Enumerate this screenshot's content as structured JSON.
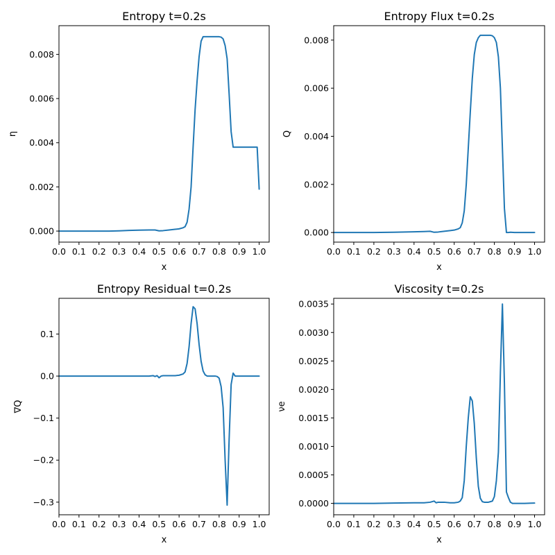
{
  "colors": {
    "line": "#1f77b4",
    "axis": "#000000",
    "background": "#ffffff"
  },
  "chart_data": [
    {
      "type": "line",
      "title": "Entropy t=0.2s",
      "xlabel": "x",
      "ylabel": "η",
      "xlim": [
        0.0,
        1.05
      ],
      "ylim": [
        -0.0005,
        0.0093
      ],
      "xticks": [
        0.0,
        0.1,
        0.2,
        0.3,
        0.4,
        0.5,
        0.6,
        0.7,
        0.8,
        0.9,
        1.0
      ],
      "xtick_labels": [
        "0.0",
        "0.1",
        "0.2",
        "0.3",
        "0.4",
        "0.5",
        "0.6",
        "0.7",
        "0.8",
        "0.9",
        "1.0"
      ],
      "yticks": [
        0.0,
        0.002,
        0.004,
        0.006,
        0.008
      ],
      "ytick_labels": [
        "0.000",
        "0.002",
        "0.004",
        "0.006",
        "0.008"
      ],
      "series": [
        {
          "color": "#1f77b4",
          "x": [
            0.0,
            0.05,
            0.1,
            0.15,
            0.2,
            0.25,
            0.3,
            0.35,
            0.4,
            0.45,
            0.48,
            0.5,
            0.52,
            0.55,
            0.58,
            0.6,
            0.62,
            0.63,
            0.64,
            0.65,
            0.66,
            0.67,
            0.68,
            0.69,
            0.7,
            0.71,
            0.72,
            0.73,
            0.74,
            0.75,
            0.76,
            0.77,
            0.78,
            0.79,
            0.8,
            0.81,
            0.82,
            0.83,
            0.84,
            0.85,
            0.86,
            0.87,
            0.88,
            0.9,
            0.95,
            0.98,
            0.99,
            1.0
          ],
          "y": [
            0.0,
            0.0,
            0.0,
            0.0,
            0.0,
            0.0,
            1e-05,
            3e-05,
            4e-05,
            5e-05,
            5e-05,
            1e-05,
            2e-05,
            5e-05,
            8e-05,
            0.0001,
            0.00015,
            0.0002,
            0.0004,
            0.001,
            0.002,
            0.0038,
            0.0055,
            0.0068,
            0.0079,
            0.0086,
            0.0088,
            0.0088,
            0.0088,
            0.0088,
            0.0088,
            0.0088,
            0.0088,
            0.0088,
            0.0088,
            0.00878,
            0.0087,
            0.0084,
            0.0078,
            0.0062,
            0.0045,
            0.0038,
            0.0038,
            0.0038,
            0.0038,
            0.0038,
            0.0038,
            0.0019
          ]
        }
      ]
    },
    {
      "type": "line",
      "title": "Entropy Flux t=0.2s",
      "xlabel": "x",
      "ylabel": "Q",
      "xlim": [
        0.0,
        1.05
      ],
      "ylim": [
        -0.0004,
        0.0086
      ],
      "xticks": [
        0.0,
        0.1,
        0.2,
        0.3,
        0.4,
        0.5,
        0.6,
        0.7,
        0.8,
        0.9,
        1.0
      ],
      "xtick_labels": [
        "0.0",
        "0.1",
        "0.2",
        "0.3",
        "0.4",
        "0.5",
        "0.6",
        "0.7",
        "0.8",
        "0.9",
        "1.0"
      ],
      "yticks": [
        0.0,
        0.002,
        0.004,
        0.006,
        0.008
      ],
      "ytick_labels": [
        "0.000",
        "0.002",
        "0.004",
        "0.006",
        "0.008"
      ],
      "series": [
        {
          "color": "#1f77b4",
          "x": [
            0.0,
            0.05,
            0.1,
            0.2,
            0.3,
            0.4,
            0.45,
            0.48,
            0.5,
            0.52,
            0.55,
            0.58,
            0.6,
            0.62,
            0.63,
            0.64,
            0.65,
            0.66,
            0.67,
            0.68,
            0.69,
            0.7,
            0.71,
            0.72,
            0.73,
            0.74,
            0.75,
            0.76,
            0.77,
            0.78,
            0.79,
            0.8,
            0.81,
            0.82,
            0.83,
            0.84,
            0.85,
            0.86,
            0.87,
            0.88,
            0.9,
            0.95,
            1.0
          ],
          "y": [
            0.0,
            0.0,
            0.0,
            0.0,
            1e-05,
            3e-05,
            4e-05,
            5e-05,
            1e-05,
            2e-05,
            5e-05,
            8e-05,
            0.0001,
            0.00015,
            0.0002,
            0.0004,
            0.0009,
            0.002,
            0.0035,
            0.005,
            0.0064,
            0.0074,
            0.0079,
            0.0081,
            0.0082,
            0.0082,
            0.0082,
            0.0082,
            0.0082,
            0.0082,
            0.00818,
            0.0081,
            0.0079,
            0.0073,
            0.006,
            0.0035,
            0.001,
            0.0,
            0.0,
            1e-05,
            0.0,
            0.0,
            0.0
          ]
        }
      ]
    },
    {
      "type": "line",
      "title": "Entropy Residual t=0.2s",
      "xlabel": "x",
      "ylabel": "∇Q",
      "xlim": [
        0.0,
        1.05
      ],
      "ylim": [
        -0.33,
        0.185
      ],
      "xticks": [
        0.0,
        0.1,
        0.2,
        0.3,
        0.4,
        0.5,
        0.6,
        0.7,
        0.8,
        0.9,
        1.0
      ],
      "xtick_labels": [
        "0.0",
        "0.1",
        "0.2",
        "0.3",
        "0.4",
        "0.5",
        "0.6",
        "0.7",
        "0.8",
        "0.9",
        "1.0"
      ],
      "yticks": [
        -0.3,
        -0.2,
        -0.1,
        0.0,
        0.1
      ],
      "ytick_labels": [
        "−0.3",
        "−0.2",
        "−0.1",
        "0.0",
        "0.1"
      ],
      "series": [
        {
          "color": "#1f77b4",
          "x": [
            0.0,
            0.1,
            0.2,
            0.3,
            0.4,
            0.45,
            0.47,
            0.48,
            0.49,
            0.5,
            0.51,
            0.52,
            0.55,
            0.58,
            0.6,
            0.62,
            0.63,
            0.64,
            0.65,
            0.66,
            0.67,
            0.68,
            0.69,
            0.7,
            0.71,
            0.72,
            0.73,
            0.74,
            0.75,
            0.76,
            0.77,
            0.78,
            0.79,
            0.8,
            0.81,
            0.82,
            0.83,
            0.84,
            0.85,
            0.86,
            0.87,
            0.88,
            0.89,
            0.9,
            0.95,
            1.0
          ],
          "y": [
            0.0,
            0.0,
            0.0,
            0.0,
            0.0,
            0.0,
            0.001,
            -0.001,
            0.001,
            -0.004,
            0.0,
            0.001,
            0.001,
            0.001,
            0.002,
            0.005,
            0.01,
            0.03,
            0.07,
            0.125,
            0.165,
            0.16,
            0.125,
            0.075,
            0.035,
            0.012,
            0.003,
            0.0,
            0.0,
            0.0,
            0.0,
            0.0,
            -0.001,
            -0.005,
            -0.025,
            -0.075,
            -0.2,
            -0.307,
            -0.15,
            -0.02,
            0.007,
            0.0,
            0.0,
            0.0,
            0.0,
            0.0
          ]
        }
      ]
    },
    {
      "type": "line",
      "title": "Viscosity t=0.2s",
      "xlabel": "x",
      "ylabel": "νe",
      "xlim": [
        0.0,
        1.05
      ],
      "ylim": [
        -0.0002,
        0.0036
      ],
      "xticks": [
        0.0,
        0.1,
        0.2,
        0.3,
        0.4,
        0.5,
        0.6,
        0.7,
        0.8,
        0.9,
        1.0
      ],
      "xtick_labels": [
        "0.0",
        "0.1",
        "0.2",
        "0.3",
        "0.4",
        "0.5",
        "0.6",
        "0.7",
        "0.8",
        "0.9",
        "1.0"
      ],
      "yticks": [
        0.0,
        0.0005,
        0.001,
        0.0015,
        0.002,
        0.0025,
        0.003,
        0.0035
      ],
      "ytick_labels": [
        "0.0000",
        "0.0005",
        "0.0010",
        "0.0015",
        "0.0020",
        "0.0025",
        "0.0030",
        "0.0035"
      ],
      "series": [
        {
          "color": "#1f77b4",
          "x": [
            0.0,
            0.1,
            0.2,
            0.3,
            0.4,
            0.45,
            0.48,
            0.5,
            0.51,
            0.52,
            0.55,
            0.58,
            0.6,
            0.62,
            0.63,
            0.64,
            0.65,
            0.66,
            0.67,
            0.68,
            0.69,
            0.7,
            0.71,
            0.72,
            0.73,
            0.74,
            0.75,
            0.76,
            0.77,
            0.78,
            0.79,
            0.8,
            0.81,
            0.82,
            0.83,
            0.84,
            0.85,
            0.86,
            0.87,
            0.88,
            0.89,
            0.9,
            0.95,
            1.0
          ],
          "y": [
            0.0,
            0.0,
            0.0,
            5e-06,
            1e-05,
            1e-05,
            2e-05,
            4e-05,
            1e-05,
            2e-05,
            2e-05,
            1e-05,
            1e-05,
            2e-05,
            4e-05,
            0.0001,
            0.0004,
            0.001,
            0.0015,
            0.00187,
            0.0018,
            0.0014,
            0.0008,
            0.0003,
            9e-05,
            3e-05,
            2e-05,
            2e-05,
            2e-05,
            3e-05,
            4e-05,
            0.00012,
            0.0004,
            0.0009,
            0.0023,
            0.0035,
            0.0021,
            0.0002,
            0.0001,
            2e-05,
            0.0,
            0.0,
            0.0,
            5e-06
          ]
        }
      ]
    }
  ]
}
